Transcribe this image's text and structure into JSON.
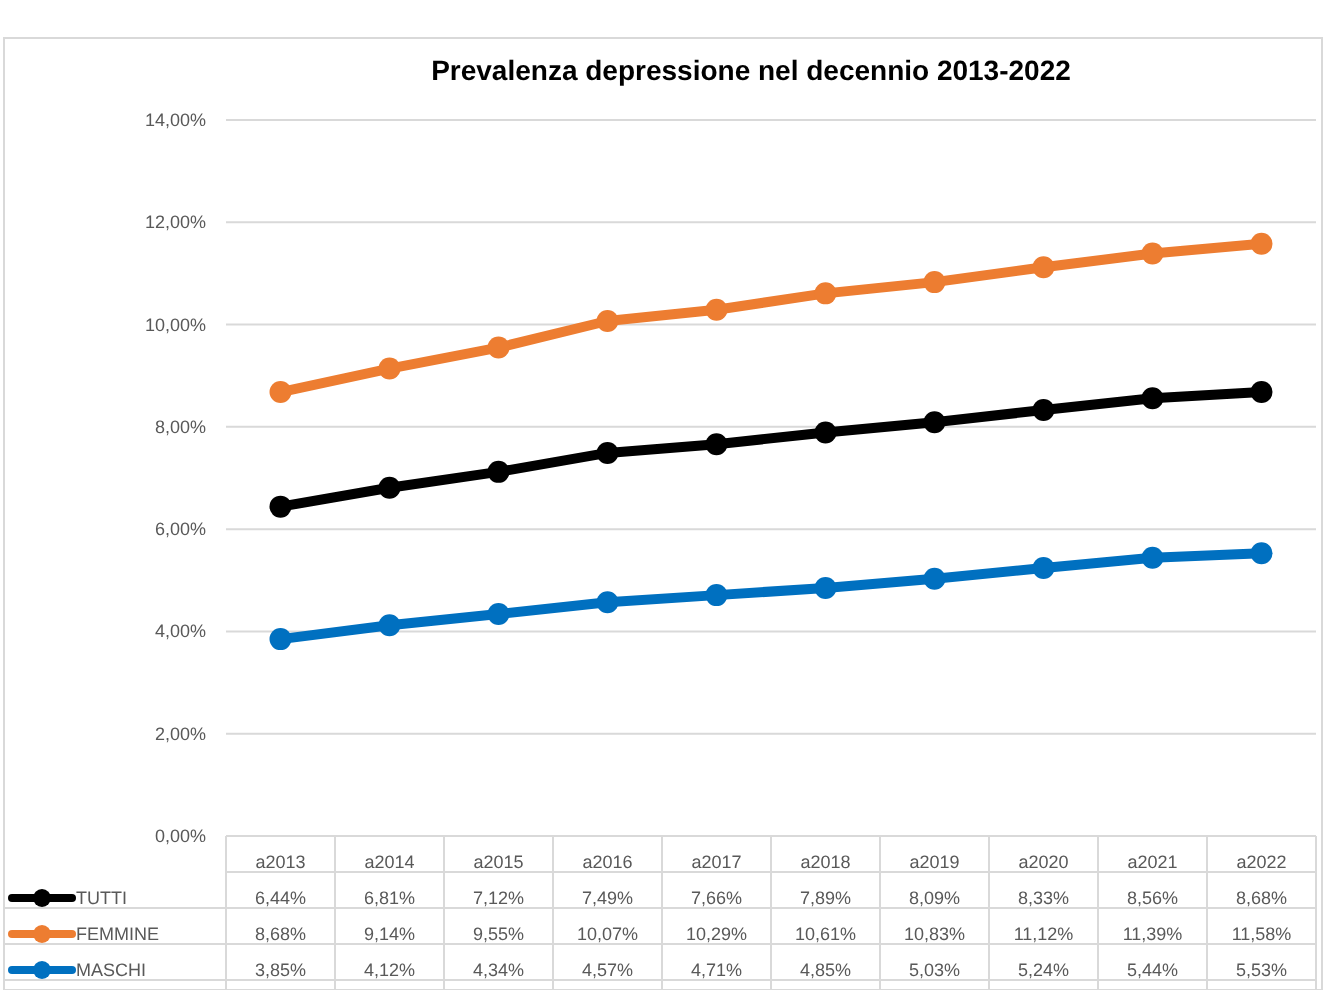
{
  "chart_data": {
    "type": "line",
    "title": "Prevalenza depressione nel decennio 2013-2022",
    "categories": [
      "a2013",
      "a2014",
      "a2015",
      "a2016",
      "a2017",
      "a2018",
      "a2019",
      "a2020",
      "a2021",
      "a2022"
    ],
    "series": [
      {
        "name": "TUTTI",
        "color": "#000000",
        "values": [
          6.44,
          6.81,
          7.12,
          7.49,
          7.66,
          7.89,
          8.09,
          8.33,
          8.56,
          8.68
        ],
        "value_labels": [
          "6,44%",
          "6,81%",
          "7,12%",
          "7,49%",
          "7,66%",
          "7,89%",
          "8,09%",
          "8,33%",
          "8,56%",
          "8,68%"
        ]
      },
      {
        "name": "FEMMINE",
        "color": "#ed7d31",
        "values": [
          8.68,
          9.14,
          9.55,
          10.07,
          10.29,
          10.61,
          10.83,
          11.12,
          11.39,
          11.58
        ],
        "value_labels": [
          "8,68%",
          "9,14%",
          "9,55%",
          "10,07%",
          "10,29%",
          "10,61%",
          "10,83%",
          "11,12%",
          "11,39%",
          "11,58%"
        ]
      },
      {
        "name": "MASCHI",
        "color": "#0070c0",
        "values": [
          3.85,
          4.12,
          4.34,
          4.57,
          4.71,
          4.85,
          5.03,
          5.24,
          5.44,
          5.53
        ],
        "value_labels": [
          "3,85%",
          "4,12%",
          "4,34%",
          "4,57%",
          "4,71%",
          "4,85%",
          "5,03%",
          "5,24%",
          "5,44%",
          "5,53%"
        ]
      }
    ],
    "ylim": [
      0,
      14
    ],
    "yticks": [
      {
        "value": 0,
        "label": "0,00%"
      },
      {
        "value": 2,
        "label": "2,00%"
      },
      {
        "value": 4,
        "label": "4,00%"
      },
      {
        "value": 6,
        "label": "6,00%"
      },
      {
        "value": 8,
        "label": "8,00%"
      },
      {
        "value": 10,
        "label": "10,00%"
      },
      {
        "value": 12,
        "label": "12,00%"
      },
      {
        "value": 14,
        "label": "14,00%"
      }
    ],
    "grid": "y",
    "legend": "bottom",
    "marker": "circle",
    "line_style": "solid"
  }
}
